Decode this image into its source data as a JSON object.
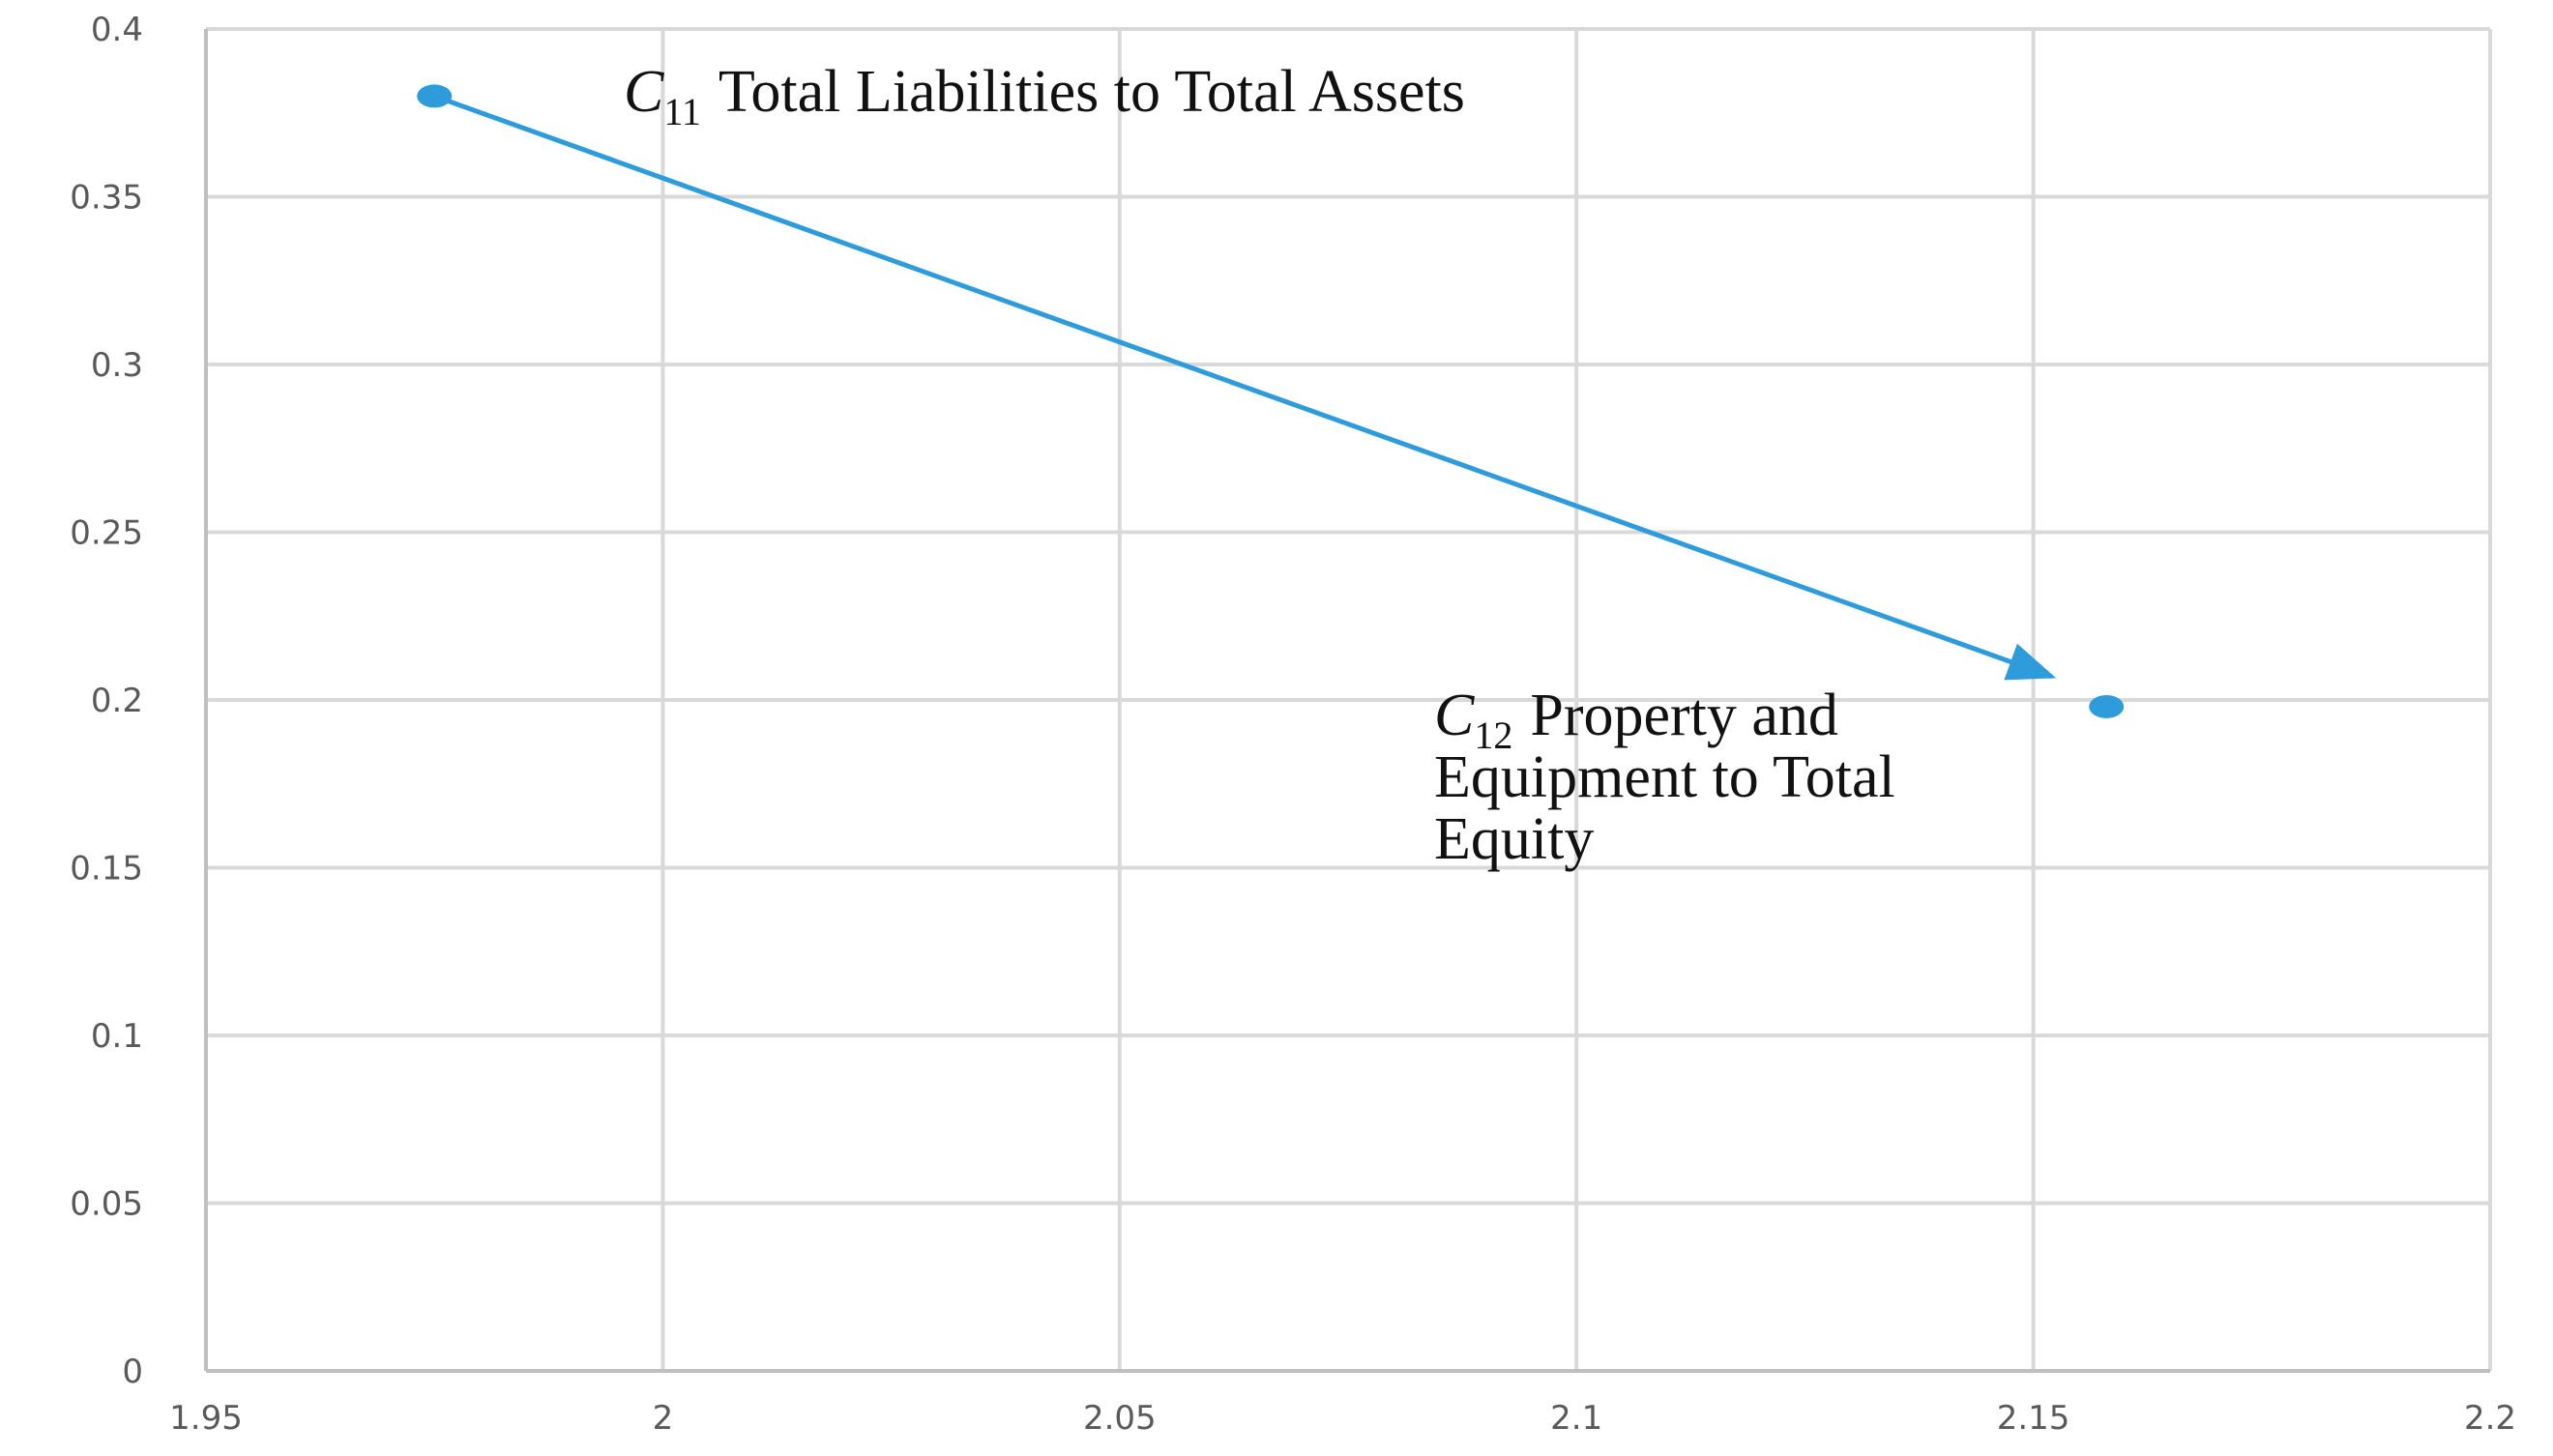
{
  "chart_data": {
    "type": "scatter",
    "xlim": [
      1.95,
      2.2
    ],
    "ylim": [
      0,
      0.4
    ],
    "x_ticks": [
      "1.95",
      "2",
      "2.05",
      "2.1",
      "2.15",
      "2.2"
    ],
    "y_ticks": [
      "0",
      "0.05",
      "0.1",
      "0.15",
      "0.2",
      "0.25",
      "0.3",
      "0.35",
      "0.4"
    ],
    "grid": true,
    "points": [
      {
        "x": 1.975,
        "y": 0.38
      },
      {
        "x": 2.158,
        "y": 0.198
      }
    ],
    "arrow": {
      "from": {
        "x": 1.975,
        "y": 0.38
      },
      "to": {
        "x": 2.152,
        "y": 0.207
      }
    },
    "annotations": [
      {
        "symbol": "C",
        "subscript": "11",
        "lines": [
          "Total Liabilities to Total Assets"
        ]
      },
      {
        "symbol": "C",
        "subscript": "12",
        "lines": [
          "Property and",
          "Equipment to Total",
          "Equity"
        ]
      }
    ],
    "colors": {
      "series": "#2E9BDB",
      "grid": "#D9D9D9",
      "axis": "#BFBFBF",
      "tick_text": "#595959"
    }
  }
}
